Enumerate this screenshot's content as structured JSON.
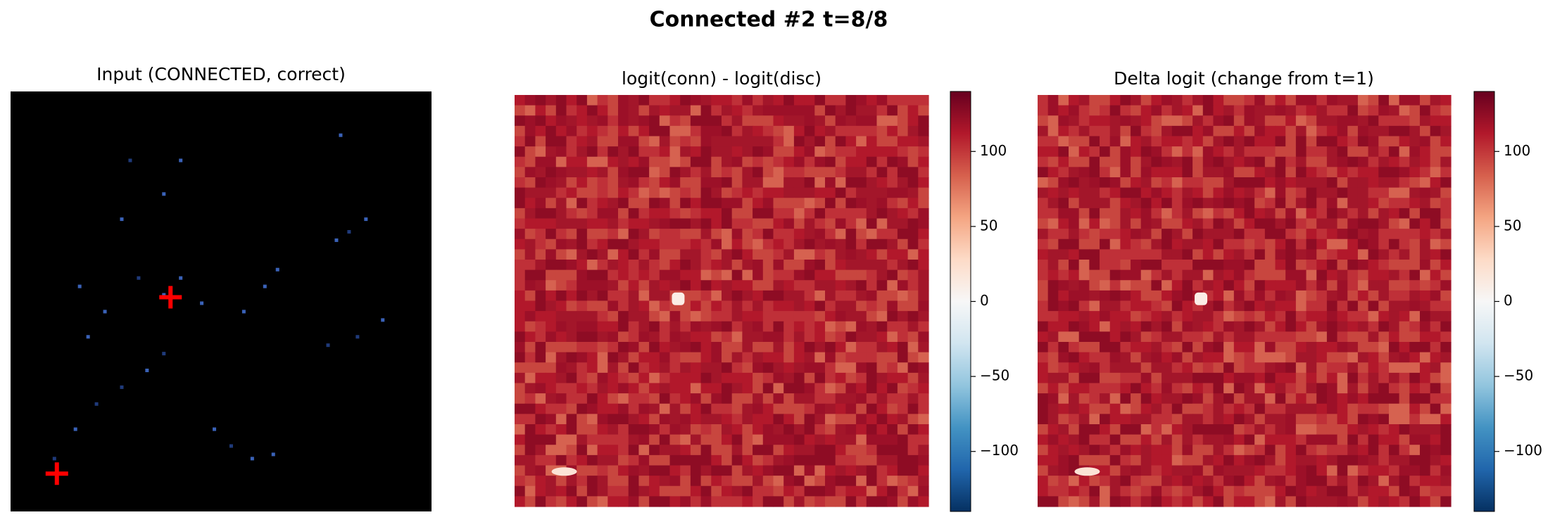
{
  "title": "Connected #2  t=8/8",
  "chart_data": [
    {
      "type": "image",
      "title": "Input (CONNECTED, correct)"
    },
    {
      "type": "heatmap",
      "title": "logit(conn) - logit(disc)",
      "clim": [
        -140,
        140
      ],
      "cticks": [
        {
          "value": -100,
          "label": "−100"
        },
        {
          "value": -50,
          "label": "−50"
        },
        0,
        50,
        100
      ]
    },
    {
      "type": "heatmap",
      "title": "Delta logit (change from t=1)",
      "clim": [
        -140,
        140
      ],
      "cticks": [
        {
          "value": -100,
          "label": "−100"
        },
        {
          "value": -50,
          "label": "−50"
        },
        0,
        50,
        100
      ]
    }
  ]
}
